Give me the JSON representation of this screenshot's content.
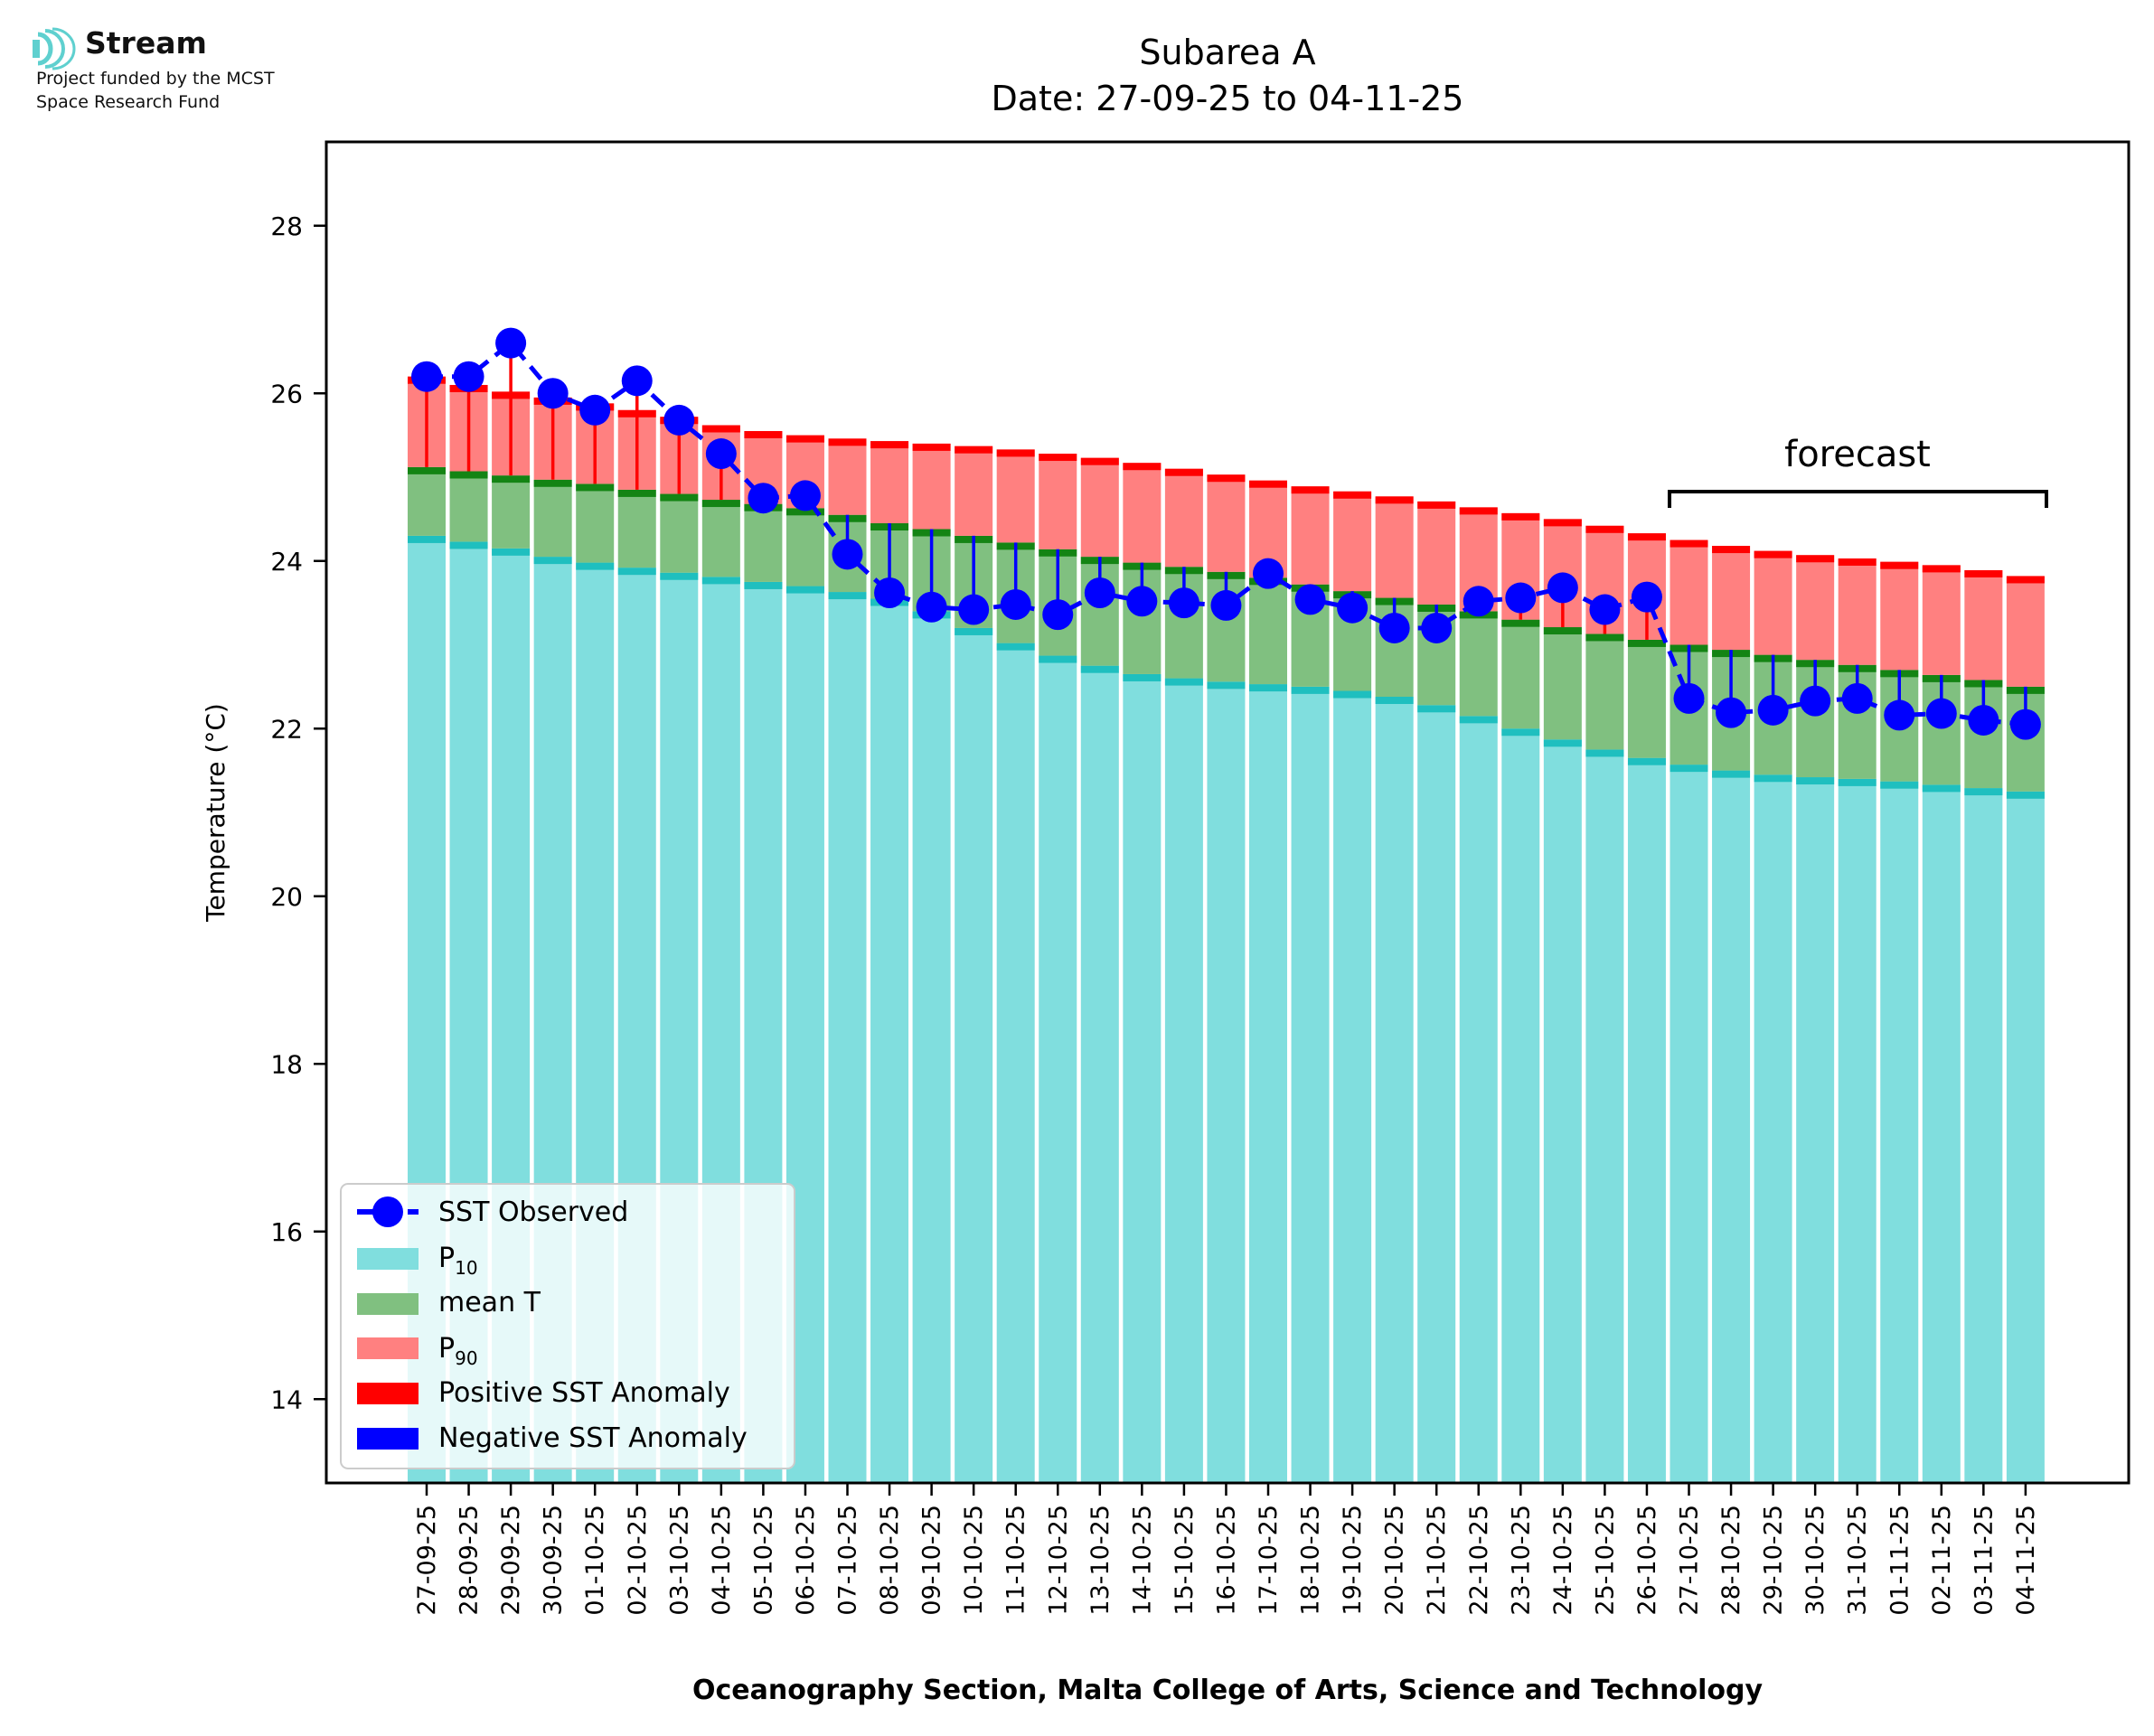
{
  "logo": {
    "brand": "Stream",
    "line1": "Project funded by the MCST",
    "line2": "Space Research Fund"
  },
  "colors": {
    "p10": "#80dede",
    "p10_edge": "#1fbfbf",
    "mean": "#80c080",
    "mean_edge": "#148414",
    "p90": "#ff8080",
    "p90_edge": "#ff0000",
    "observed": "#0000ff",
    "positive_anomaly": "#ff0000",
    "negative_anomaly": "#0000ff"
  },
  "chart_data": {
    "type": "bar",
    "title": "Subarea A",
    "subtitle": "Date: 27-09-25 to 04-11-25",
    "xlabel": "Oceanography Section, Malta College of Arts, Science and Technology",
    "ylabel": "Temperature (°C)",
    "ylim": [
      13,
      29
    ],
    "yticks": [
      14,
      16,
      18,
      20,
      22,
      24,
      26,
      28
    ],
    "grid": false,
    "legend_position": "lower-left",
    "annotation": "forecast",
    "forecast_range": [
      "27-10-25",
      "04-11-25"
    ],
    "categories": [
      "27-09-25",
      "28-09-25",
      "29-09-25",
      "30-09-25",
      "01-10-25",
      "02-10-25",
      "03-10-25",
      "04-10-25",
      "05-10-25",
      "06-10-25",
      "07-10-25",
      "08-10-25",
      "09-10-25",
      "10-10-25",
      "11-10-25",
      "12-10-25",
      "13-10-25",
      "14-10-25",
      "15-10-25",
      "16-10-25",
      "17-10-25",
      "18-10-25",
      "19-10-25",
      "20-10-25",
      "21-10-25",
      "22-10-25",
      "23-10-25",
      "24-10-25",
      "25-10-25",
      "26-10-25",
      "27-10-25",
      "28-10-25",
      "29-10-25",
      "30-10-25",
      "31-10-25",
      "01-11-25",
      "02-11-25",
      "03-11-25",
      "04-11-25"
    ],
    "series": [
      {
        "name": "SST Observed",
        "values": [
          26.2,
          26.2,
          26.6,
          26.0,
          25.8,
          26.15,
          25.68,
          25.28,
          24.75,
          24.78,
          24.08,
          23.62,
          23.45,
          23.42,
          23.48,
          23.36,
          23.62,
          23.52,
          23.5,
          23.47,
          23.85,
          23.54,
          23.44,
          23.2,
          23.2,
          23.52,
          23.56,
          23.68,
          23.42,
          23.57,
          22.36,
          22.19,
          22.22,
          22.33,
          22.36,
          22.16,
          22.18,
          22.1,
          22.05
        ]
      },
      {
        "name": "P10",
        "values": [
          24.3,
          24.23,
          24.15,
          24.05,
          23.98,
          23.92,
          23.86,
          23.81,
          23.75,
          23.7,
          23.63,
          23.55,
          23.4,
          23.2,
          23.02,
          22.87,
          22.75,
          22.65,
          22.6,
          22.56,
          22.53,
          22.5,
          22.45,
          22.38,
          22.28,
          22.15,
          22.0,
          21.87,
          21.75,
          21.65,
          21.57,
          21.5,
          21.45,
          21.42,
          21.4,
          21.37,
          21.33,
          21.29,
          21.25
        ]
      },
      {
        "name": "mean T",
        "values": [
          25.12,
          25.07,
          25.02,
          24.97,
          24.92,
          24.85,
          24.8,
          24.73,
          24.68,
          24.63,
          24.55,
          24.45,
          24.38,
          24.3,
          24.22,
          24.14,
          24.05,
          23.98,
          23.93,
          23.87,
          23.8,
          23.72,
          23.64,
          23.56,
          23.48,
          23.4,
          23.3,
          23.21,
          23.13,
          23.06,
          23.0,
          22.94,
          22.88,
          22.82,
          22.76,
          22.7,
          22.64,
          22.58,
          22.5
        ]
      },
      {
        "name": "P90",
        "values": [
          26.2,
          26.1,
          26.02,
          25.95,
          25.88,
          25.8,
          25.72,
          25.62,
          25.55,
          25.5,
          25.46,
          25.43,
          25.4,
          25.37,
          25.33,
          25.28,
          25.23,
          25.17,
          25.1,
          25.03,
          24.96,
          24.89,
          24.83,
          24.77,
          24.71,
          24.64,
          24.57,
          24.5,
          24.42,
          24.33,
          24.25,
          24.18,
          24.12,
          24.07,
          24.03,
          23.99,
          23.95,
          23.89,
          23.82
        ]
      }
    ],
    "legend": {
      "observed": "SST Observed",
      "p10_main": "P",
      "p10_sub": "10",
      "mean": "mean T",
      "p90_main": "P",
      "p90_sub": "90",
      "positive": "Positive SST Anomaly",
      "negative": "Negative SST Anomaly"
    }
  }
}
